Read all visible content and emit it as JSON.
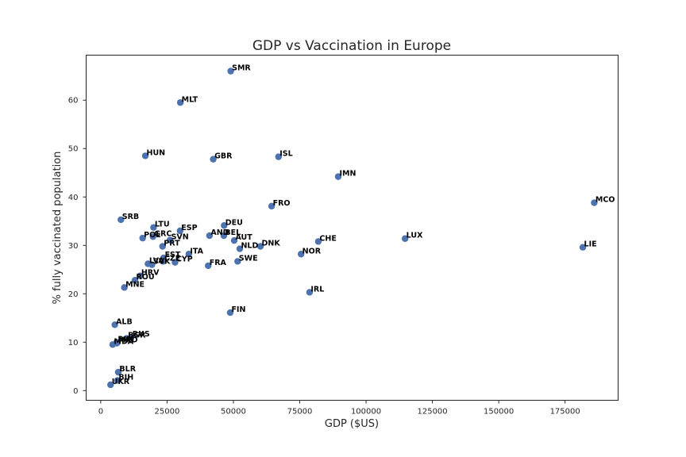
{
  "chart_data": {
    "type": "scatter",
    "title": "GDP vs Vaccination in Europe",
    "xlabel": "GDP ($US)",
    "ylabel": "% fully vaccinated population",
    "xlim": [
      -5500,
      195000
    ],
    "ylim": [
      -2,
      69.3
    ],
    "xticks": [
      0,
      25000,
      50000,
      75000,
      100000,
      125000,
      150000,
      175000
    ],
    "xtick_labels": [
      "0",
      "25000",
      "50000",
      "75000",
      "100000",
      "125000",
      "150000",
      "175000"
    ],
    "yticks": [
      0,
      10,
      20,
      30,
      40,
      50,
      60
    ],
    "ytick_labels": [
      "0",
      "10",
      "20",
      "30",
      "40",
      "50",
      "60"
    ],
    "grid": false,
    "marker_color": "#4c72b0",
    "points": [
      {
        "label": "SMR",
        "x": 49000,
        "y": 66.0
      },
      {
        "label": "MLT",
        "x": 30000,
        "y": 59.5
      },
      {
        "label": "HUN",
        "x": 16800,
        "y": 48.5
      },
      {
        "label": "GBR",
        "x": 42400,
        "y": 47.8
      },
      {
        "label": "ISL",
        "x": 67000,
        "y": 48.3
      },
      {
        "label": "IMN",
        "x": 89500,
        "y": 44.2
      },
      {
        "label": "MCO",
        "x": 186000,
        "y": 38.8
      },
      {
        "label": "FRO",
        "x": 64400,
        "y": 38.1
      },
      {
        "label": "SRB",
        "x": 7600,
        "y": 35.3
      },
      {
        "label": "LTU",
        "x": 19900,
        "y": 33.7
      },
      {
        "label": "ESP",
        "x": 29900,
        "y": 33.0
      },
      {
        "label": "DEU",
        "x": 46500,
        "y": 34.1
      },
      {
        "label": "POL",
        "x": 15800,
        "y": 31.5
      },
      {
        "label": "GRC",
        "x": 19700,
        "y": 31.8
      },
      {
        "label": "SVN",
        "x": 26100,
        "y": 31.1
      },
      {
        "label": "AND",
        "x": 41000,
        "y": 32.0
      },
      {
        "label": "BEL",
        "x": 46400,
        "y": 32.0
      },
      {
        "label": "AUT",
        "x": 50300,
        "y": 31.0
      },
      {
        "label": "NLD",
        "x": 52400,
        "y": 29.3
      },
      {
        "label": "DNK",
        "x": 60200,
        "y": 29.8
      },
      {
        "label": "CHE",
        "x": 82000,
        "y": 30.8
      },
      {
        "label": "LUX",
        "x": 114700,
        "y": 31.4
      },
      {
        "label": "LIE",
        "x": 181700,
        "y": 29.6
      },
      {
        "label": "PRT",
        "x": 23300,
        "y": 29.8
      },
      {
        "label": "NOR",
        "x": 75500,
        "y": 28.2
      },
      {
        "label": "ITA",
        "x": 33200,
        "y": 28.2
      },
      {
        "label": "EST",
        "x": 23700,
        "y": 27.4
      },
      {
        "label": "CZE",
        "x": 23500,
        "y": 26.7
      },
      {
        "label": "CYP",
        "x": 28000,
        "y": 26.5
      },
      {
        "label": "SWE",
        "x": 51600,
        "y": 26.7
      },
      {
        "label": "FRA",
        "x": 40500,
        "y": 25.8
      },
      {
        "label": "LVA",
        "x": 17800,
        "y": 26.2
      },
      {
        "label": "SVK",
        "x": 19300,
        "y": 26.0
      },
      {
        "label": "HRV",
        "x": 14800,
        "y": 23.7
      },
      {
        "label": "ROU",
        "x": 12900,
        "y": 22.8
      },
      {
        "label": "MNE",
        "x": 8900,
        "y": 21.3
      },
      {
        "label": "IRL",
        "x": 78700,
        "y": 20.3
      },
      {
        "label": "FIN",
        "x": 48800,
        "y": 16.1
      },
      {
        "label": "ALB",
        "x": 5300,
        "y": 13.6
      },
      {
        "label": "BGR",
        "x": 9800,
        "y": 10.8
      },
      {
        "label": "RUS",
        "x": 11500,
        "y": 11.0
      },
      {
        "label": "BIH",
        "x": 6000,
        "y": 10.0
      },
      {
        "label": "MKD",
        "x": 6100,
        "y": 9.8
      },
      {
        "label": "MDA",
        "x": 4500,
        "y": 9.5
      },
      {
        "label": "BLR",
        "x": 6600,
        "y": 3.8
      },
      {
        "label": "BIH",
        "x": 6300,
        "y": 2.1
      },
      {
        "label": "UKR",
        "x": 3700,
        "y": 1.2
      }
    ]
  }
}
